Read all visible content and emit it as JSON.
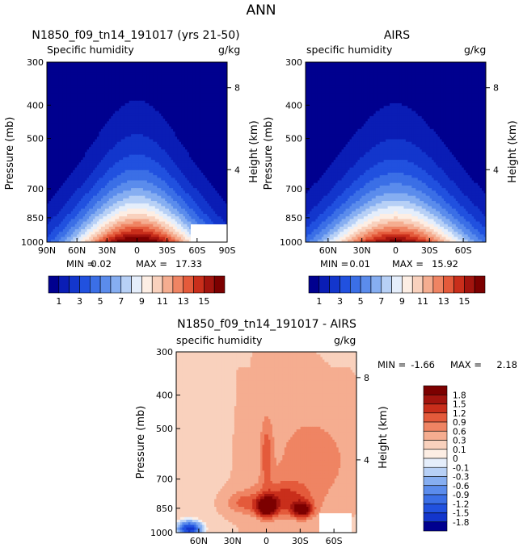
{
  "figure": {
    "title": "ANN"
  },
  "chart_data": [
    {
      "type": "contour",
      "title": "N1850_f09_tn14_191017 (yrs 21-50)",
      "subtitle_left": "Specific humidity",
      "subtitle_right": "g/kg",
      "ylabel": "Pressure (mb)",
      "ylabel_right": "Height (km)",
      "yticks": [
        "300",
        "400",
        "500",
        "700",
        "850",
        "1000"
      ],
      "yticks_right": [
        "8",
        "4"
      ],
      "xticks": [
        "90N",
        "60N",
        "30N",
        "0",
        "30S",
        "60S",
        "90S"
      ],
      "xlim": [
        -90,
        90
      ],
      "ylim": [
        1000,
        300
      ],
      "min_label": "MIN =",
      "min": "0.02",
      "max_label": "MAX =",
      "max": "17.33",
      "levels": [
        1,
        2,
        3,
        4,
        5,
        6,
        7,
        8,
        9,
        10,
        11,
        12,
        13,
        14,
        15,
        16
      ],
      "peak": 17.33
    },
    {
      "type": "contour",
      "title": "AIRS",
      "subtitle_left": "specific humidity",
      "subtitle_right": "g/kg",
      "ylabel": "Pressure (mb)",
      "ylabel_right": "Height (km)",
      "yticks": [
        "300",
        "400",
        "500",
        "700",
        "850",
        "1000"
      ],
      "yticks_right": [
        "8",
        "4"
      ],
      "xticks": [
        "60N",
        "30N",
        "0",
        "30S",
        "60S"
      ],
      "xlim": [
        -80,
        80
      ],
      "ylim": [
        1000,
        300
      ],
      "min_label": "MIN =",
      "min": "0.01",
      "max_label": "MAX =",
      "max": "15.92",
      "levels": [
        1,
        2,
        3,
        4,
        5,
        6,
        7,
        8,
        9,
        10,
        11,
        12,
        13,
        14,
        15,
        16
      ],
      "peak": 15.92
    },
    {
      "type": "contour",
      "title": "N1850_f09_tn14_191017 - AIRS",
      "subtitle_left": "specific humidity",
      "subtitle_right": "g/kg",
      "ylabel": "Pressure (mb)",
      "ylabel_right": "Height (km)",
      "yticks": [
        "300",
        "400",
        "500",
        "700",
        "850",
        "1000"
      ],
      "yticks_right": [
        "8",
        "4"
      ],
      "xticks": [
        "60N",
        "30N",
        "0",
        "30S",
        "60S"
      ],
      "xlim": [
        -80,
        80
      ],
      "ylim": [
        1000,
        300
      ],
      "min_label": "MIN =",
      "min": "-1.66",
      "max_label": "MAX =",
      "max": "2.18",
      "levels": [
        -1.8,
        -1.5,
        -1.2,
        -0.9,
        -0.6,
        -0.3,
        -0.1,
        0,
        0.1,
        0.3,
        0.6,
        0.9,
        1.2,
        1.5,
        1.8
      ]
    }
  ],
  "colorbar_abs": {
    "labels": [
      "1",
      "3",
      "5",
      "7",
      "9",
      "11",
      "13",
      "15"
    ],
    "colors": [
      "#00008f",
      "#0a1db5",
      "#1336cc",
      "#2151df",
      "#3b6fe6",
      "#5b8cec",
      "#86aef1",
      "#b7d0f6",
      "#e5eefb",
      "#fdeee4",
      "#f9d1bd",
      "#f5ad90",
      "#ef8463",
      "#e45a3b",
      "#c92e1b",
      "#a2140e",
      "#7c0000"
    ]
  },
  "colorbar_diff": {
    "labels": [
      "1.8",
      "1.5",
      "1.2",
      "0.9",
      "0.6",
      "0.3",
      "0.1",
      "0",
      "-0.1",
      "-0.3",
      "-0.6",
      "-0.9",
      "-1.2",
      "-1.5",
      "-1.8"
    ],
    "colors": [
      "#7c0000",
      "#a2140e",
      "#c92e1b",
      "#e45a3b",
      "#ef8463",
      "#f5ad90",
      "#f9d1bd",
      "#fdeee4",
      "#e5eefb",
      "#b7d0f6",
      "#86aef1",
      "#5b8cec",
      "#3b6fe6",
      "#2151df",
      "#1336cc",
      "#00008f"
    ]
  }
}
